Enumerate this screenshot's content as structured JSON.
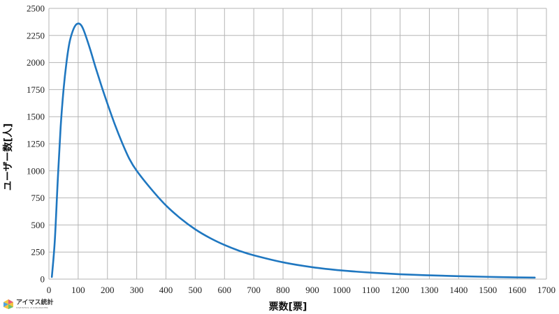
{
  "chart_data": {
    "type": "line",
    "title": "",
    "xlabel": "票数[票]",
    "ylabel": "ユーザー数[人]",
    "xlim": [
      0,
      1700
    ],
    "ylim": [
      0,
      2500
    ],
    "xticks": [
      0,
      100,
      200,
      300,
      400,
      500,
      600,
      700,
      800,
      900,
      1000,
      1100,
      1200,
      1300,
      1400,
      1500,
      1600,
      1700
    ],
    "yticks": [
      0,
      250,
      500,
      750,
      1000,
      1250,
      1500,
      1750,
      2000,
      2250,
      2500
    ],
    "grid": true,
    "line_color": "#1f77c0",
    "series": [
      {
        "x": [
          10,
          20,
          30,
          40,
          50,
          60,
          70,
          80,
          90,
          100,
          110,
          120,
          140,
          160,
          180,
          200,
          225,
          250,
          275,
          300,
          350,
          400,
          450,
          500,
          550,
          600,
          650,
          700,
          800,
          900,
          1000,
          1100,
          1200,
          1300,
          1400,
          1500,
          1600,
          1660
        ],
        "y": [
          20,
          350,
          900,
          1400,
          1750,
          2000,
          2180,
          2280,
          2340,
          2360,
          2345,
          2290,
          2130,
          1950,
          1780,
          1620,
          1430,
          1260,
          1110,
          1000,
          830,
          680,
          560,
          460,
          380,
          315,
          262,
          220,
          155,
          110,
          80,
          60,
          45,
          35,
          27,
          21,
          16,
          14
        ]
      }
    ]
  },
  "logo": {
    "name": "アイマス統計",
    "tagline": "STATISTICS of IDOLMASTER"
  }
}
